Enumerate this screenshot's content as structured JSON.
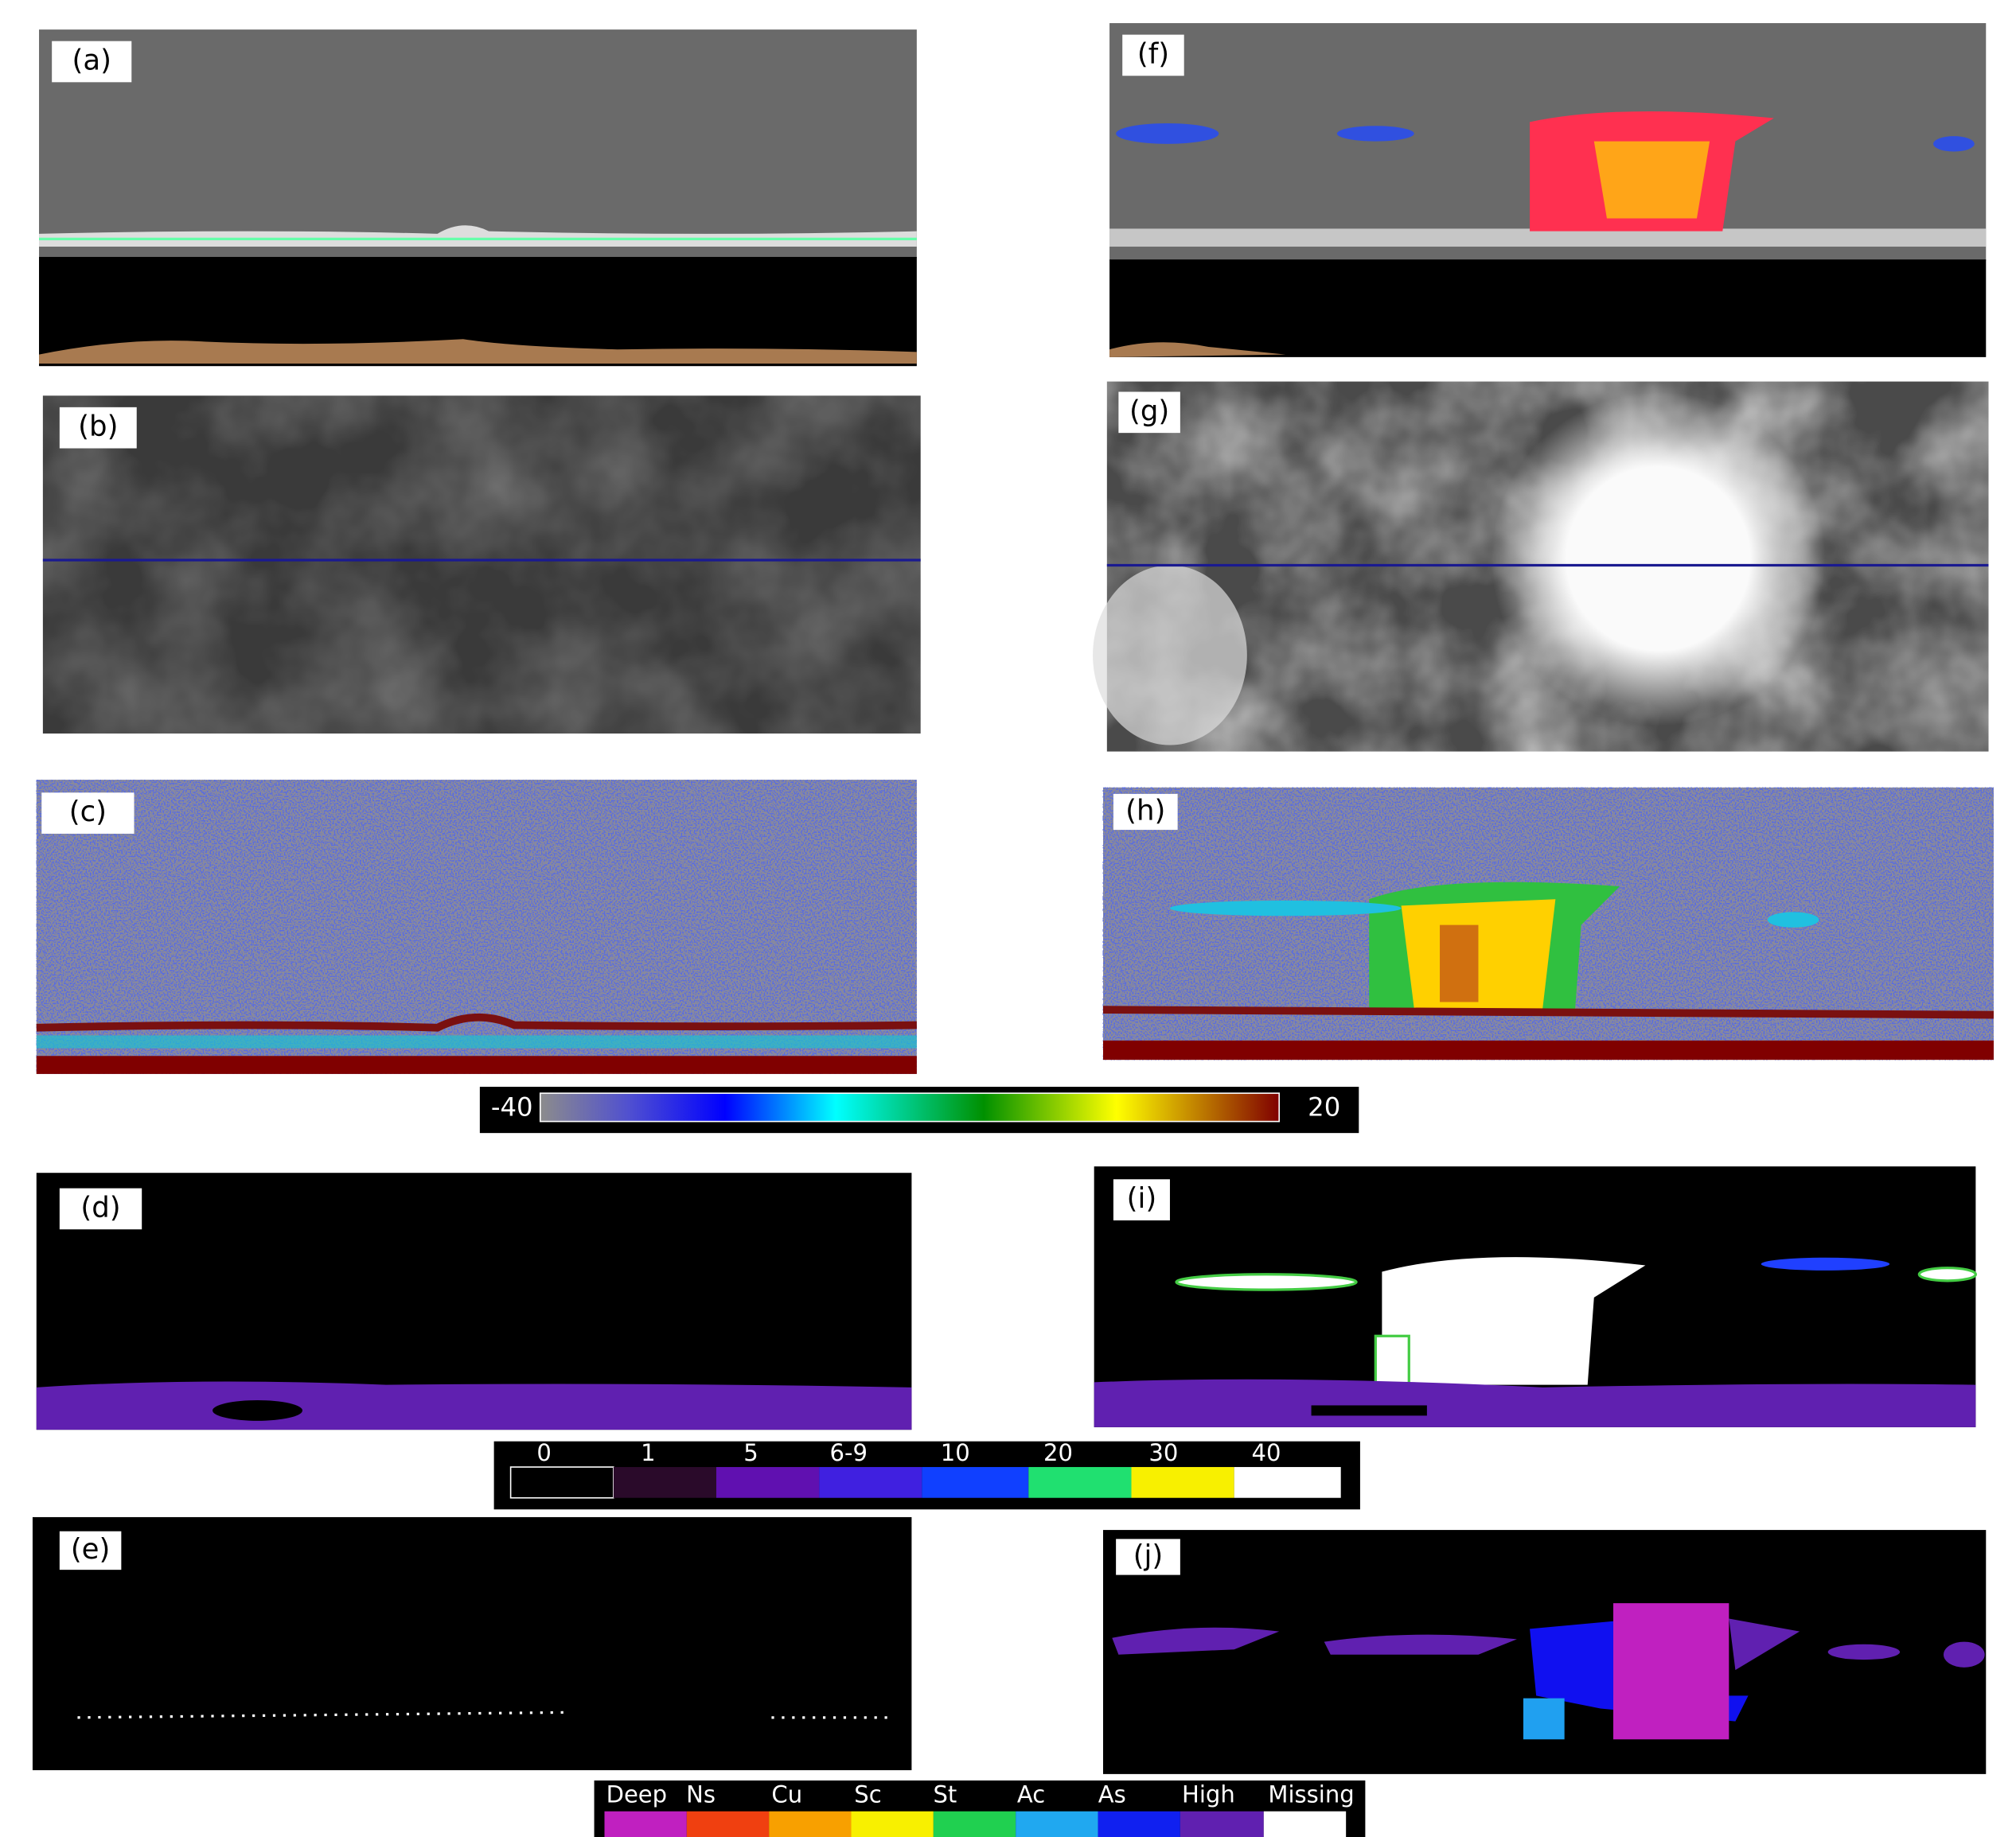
{
  "panels": [
    {
      "label": "(a)"
    },
    {
      "label": "(b)"
    },
    {
      "label": "(c)"
    },
    {
      "label": "(d)"
    },
    {
      "label": "(e)"
    },
    {
      "label": "(f)"
    },
    {
      "label": "(g)"
    },
    {
      "label": "(h)"
    },
    {
      "label": "(i)"
    },
    {
      "label": "(j)"
    }
  ],
  "colorbars": [
    {
      "labels": [
        "-40",
        "20"
      ]
    },
    {
      "labels": [
        "0",
        "1",
        "5",
        "6-9",
        "10",
        "20",
        "30",
        "40"
      ]
    },
    {
      "labels": [
        "Deep",
        "Ns",
        "Cu",
        "Sc",
        "St",
        "Ac",
        "As",
        "High",
        "Missing"
      ]
    }
  ]
}
